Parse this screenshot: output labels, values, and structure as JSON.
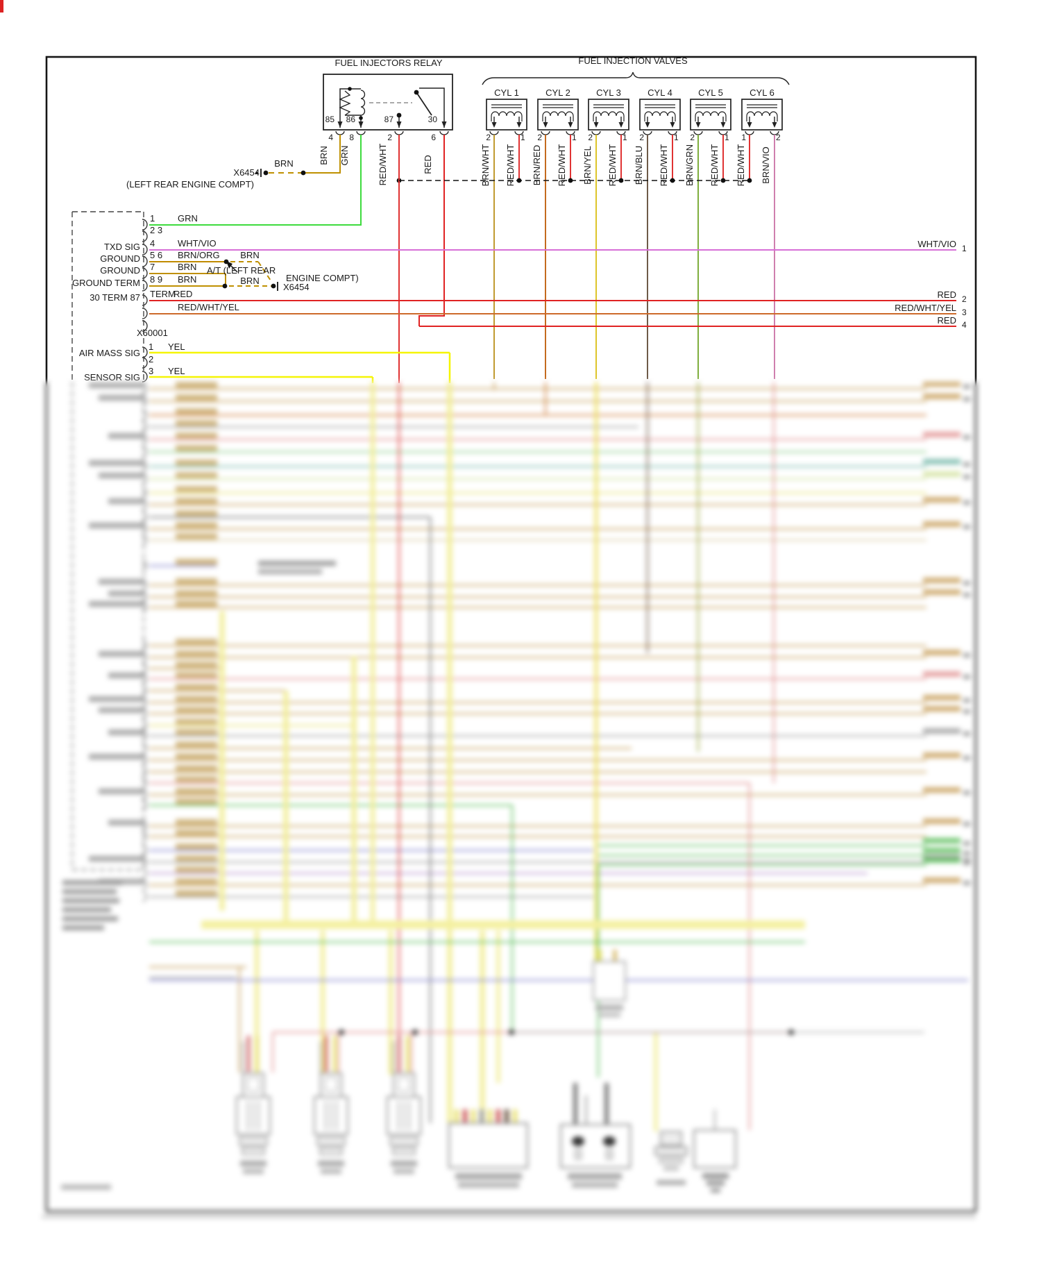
{
  "diagram": {
    "kind": "automotive fuel injection wiring diagram",
    "blurred_lower_region": true
  },
  "relay": {
    "title": "FUEL INJECTORS RELAY",
    "terminals": [
      "85",
      "86",
      "87",
      "30"
    ],
    "pins": [
      "4",
      "8",
      "2",
      "6"
    ],
    "wires": [
      "BRN",
      "GRN",
      "RED/WHT",
      "RED"
    ]
  },
  "valves": {
    "title": "FUEL INJECTION VALVES",
    "cylinders": [
      {
        "label": "CYL 1",
        "pins": [
          "2",
          "1"
        ],
        "wires": [
          "BRN/WHT",
          "RED/WHT"
        ]
      },
      {
        "label": "CYL 2",
        "pins": [
          "2",
          "1"
        ],
        "wires": [
          "BRN/RED",
          "RED/WHT"
        ]
      },
      {
        "label": "CYL 3",
        "pins": [
          "2",
          "1"
        ],
        "wires": [
          "BRN/YEL",
          "RED/WHT"
        ]
      },
      {
        "label": "CYL 4",
        "pins": [
          "2",
          "1"
        ],
        "wires": [
          "BRN/BLU",
          "RED/WHT"
        ]
      },
      {
        "label": "CYL 5",
        "pins": [
          "2",
          "1"
        ],
        "wires": [
          "BRN/GRN",
          "RED/WHT"
        ]
      },
      {
        "label": "CYL 6",
        "pins": [
          "1",
          "2"
        ],
        "wires": [
          "RED/WHT",
          "BRN/VIO"
        ]
      }
    ]
  },
  "x6454": {
    "id": "X6454",
    "location": "(LEFT REAR ENGINE COMPT)",
    "wire": "BRN"
  },
  "at_note": {
    "line1": "A/T (LEFT REAR",
    "line2": "ENGINE COMPT)",
    "connector": "X6454",
    "wire1": "BRN",
    "wire2": "BRN"
  },
  "ecu": {
    "rows": [
      {
        "pin": "1",
        "wire": "GRN",
        "label": ""
      },
      {
        "pin": "2 3",
        "wire": "",
        "label": ""
      },
      {
        "pin": "4",
        "wire": "WHT/VIO",
        "label": "TXD SIG"
      },
      {
        "pin": "5 6",
        "wire": "BRN/ORG",
        "label": "GROUND"
      },
      {
        "pin": "7",
        "wire": "BRN",
        "label": "GROUND"
      },
      {
        "pin": "8 9",
        "wire": "BRN",
        "label": "GROUND TERM"
      },
      {
        "pin": "TERM",
        "wire": "RED",
        "label": "30 TERM 87"
      },
      {
        "pin": "",
        "wire": "RED/WHT/YEL",
        "label": ""
      }
    ],
    "connector_id": "X60001",
    "sensor_rows": [
      {
        "pin": "1",
        "wire": "YEL",
        "label": "AIR MASS SIG"
      },
      {
        "pin": "2",
        "wire": "",
        "label": ""
      },
      {
        "pin": "3",
        "wire": "YEL",
        "label": "SENSOR SIG"
      }
    ]
  },
  "right_labels": [
    {
      "wire": "WHT/VIO",
      "num": "1"
    },
    {
      "wire": "RED",
      "num": "2"
    },
    {
      "wire": "RED/WHT/YEL",
      "num": "3"
    },
    {
      "wire": "RED",
      "num": "4"
    }
  ],
  "colors": {
    "green": "#3ddb3d",
    "brown": "#bf9000",
    "wht_vio": "#d76fd7",
    "red": "#e02222",
    "red_wht": "#e03333",
    "red_wht_yel": "#cd6a2a",
    "yellow": "#f5f500",
    "brn_wht": "#c09a30",
    "brn_red": "#c46a1e",
    "brn_yel": "#ddc52a",
    "brn_blu": "#6e5a48",
    "brn_grn": "#7fae3e",
    "brn_vio": "#cf7fae"
  }
}
